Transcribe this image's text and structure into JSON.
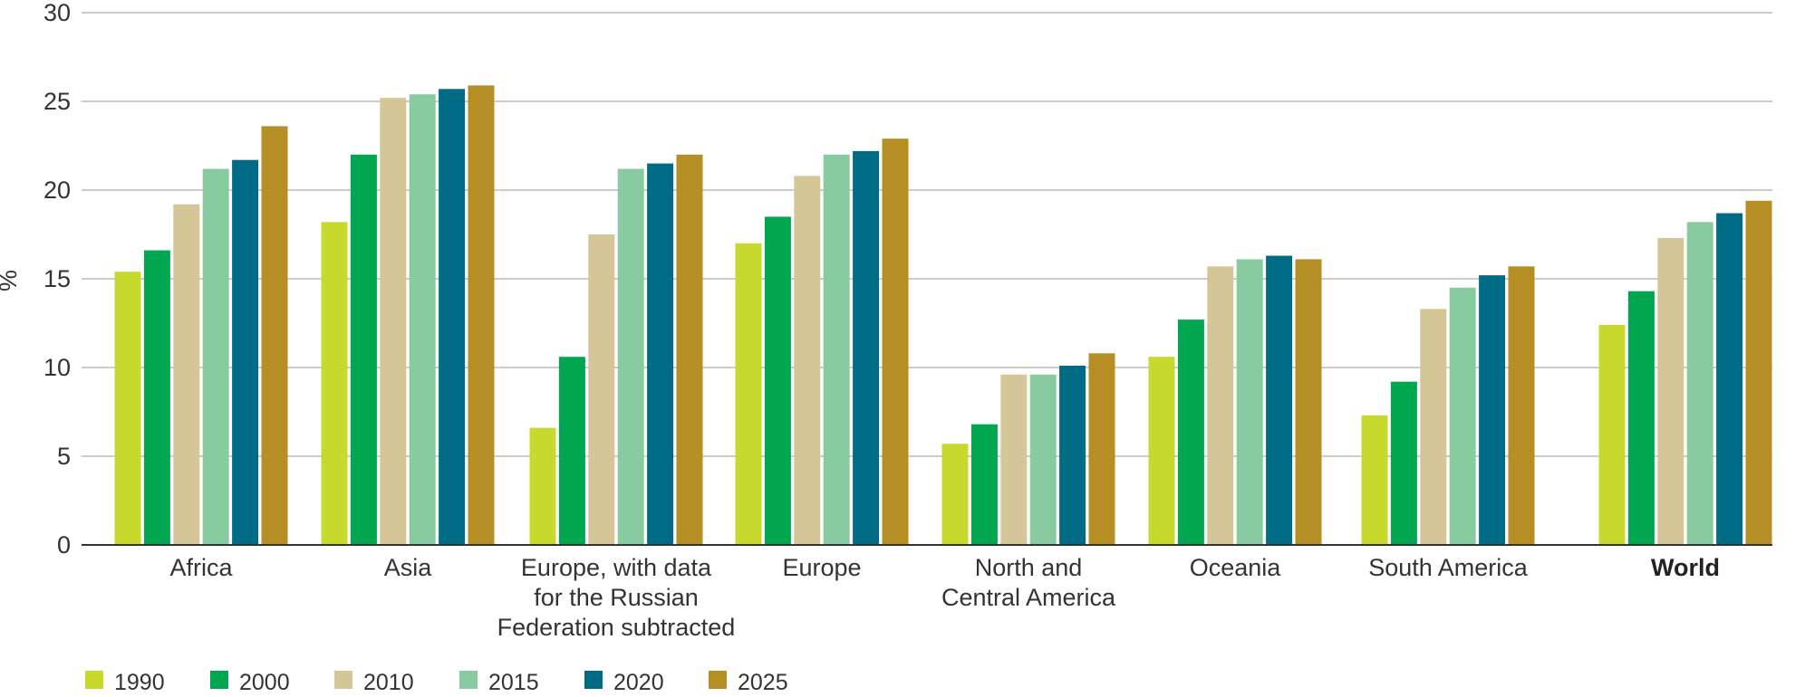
{
  "chart_data": {
    "type": "bar",
    "ylabel": "%",
    "ylim": [
      0,
      30
    ],
    "yticks": [
      "0",
      "5",
      "10",
      "15",
      "20",
      "25",
      "30"
    ],
    "grid": true,
    "legend_position": "bottom-left",
    "categories": [
      {
        "lines": [
          "Africa"
        ],
        "bold": false
      },
      {
        "lines": [
          "Asia"
        ],
        "bold": false
      },
      {
        "lines": [
          "Europe, with data",
          "for the Russian",
          "Federation subtracted"
        ],
        "bold": false
      },
      {
        "lines": [
          "Europe"
        ],
        "bold": false
      },
      {
        "lines": [
          "North and",
          "Central America"
        ],
        "bold": false
      },
      {
        "lines": [
          "Oceania"
        ],
        "bold": false
      },
      {
        "lines": [
          "South America"
        ],
        "bold": false
      },
      {
        "lines": [
          "World"
        ],
        "bold": true
      }
    ],
    "series": [
      {
        "name": "1990",
        "color": "#c8d92e",
        "values": [
          15.4,
          18.2,
          6.6,
          17.0,
          5.7,
          10.6,
          7.3,
          12.4
        ]
      },
      {
        "name": "2000",
        "color": "#00a650",
        "values": [
          16.6,
          22.0,
          10.6,
          18.5,
          6.8,
          12.7,
          9.2,
          14.3
        ]
      },
      {
        "name": "2010",
        "color": "#d5c698",
        "values": [
          19.2,
          25.2,
          17.5,
          20.8,
          9.6,
          15.7,
          13.3,
          17.3
        ]
      },
      {
        "name": "2015",
        "color": "#88cba0",
        "values": [
          21.2,
          25.4,
          21.2,
          22.0,
          9.6,
          16.1,
          14.5,
          18.2
        ]
      },
      {
        "name": "2020",
        "color": "#006b84",
        "values": [
          21.7,
          25.7,
          21.5,
          22.2,
          10.1,
          16.3,
          15.2,
          18.7
        ]
      },
      {
        "name": "2025",
        "color": "#b58f23",
        "values": [
          23.6,
          25.9,
          22.0,
          22.9,
          10.8,
          16.1,
          15.7,
          19.4
        ]
      }
    ],
    "axis_color": "#333333",
    "grid_color": "#bbbbbb"
  }
}
